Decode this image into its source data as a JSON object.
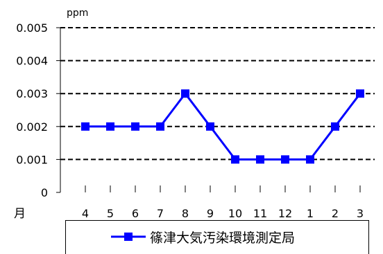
{
  "chart_data": {
    "type": "line",
    "y_unit": "ppm",
    "x_axis_label": "月",
    "categories": [
      "4",
      "5",
      "6",
      "7",
      "8",
      "9",
      "10",
      "11",
      "12",
      "1",
      "2",
      "3"
    ],
    "ylim": [
      0,
      0.005
    ],
    "y_ticks": [
      "0",
      "0.001",
      "0.002",
      "0.003",
      "0.004",
      "0.005"
    ],
    "y_tick_values": [
      0,
      0.001,
      0.002,
      0.003,
      0.004,
      0.005
    ],
    "grid": "dashed horizontal",
    "legend_position": "bottom",
    "series": [
      {
        "name": "篠津大気汚染環境測定局",
        "color": "#0000ff",
        "marker": "square",
        "values": [
          0.002,
          0.002,
          0.002,
          0.002,
          0.003,
          0.002,
          0.001,
          0.001,
          0.001,
          0.001,
          0.002,
          0.003
        ]
      }
    ]
  }
}
